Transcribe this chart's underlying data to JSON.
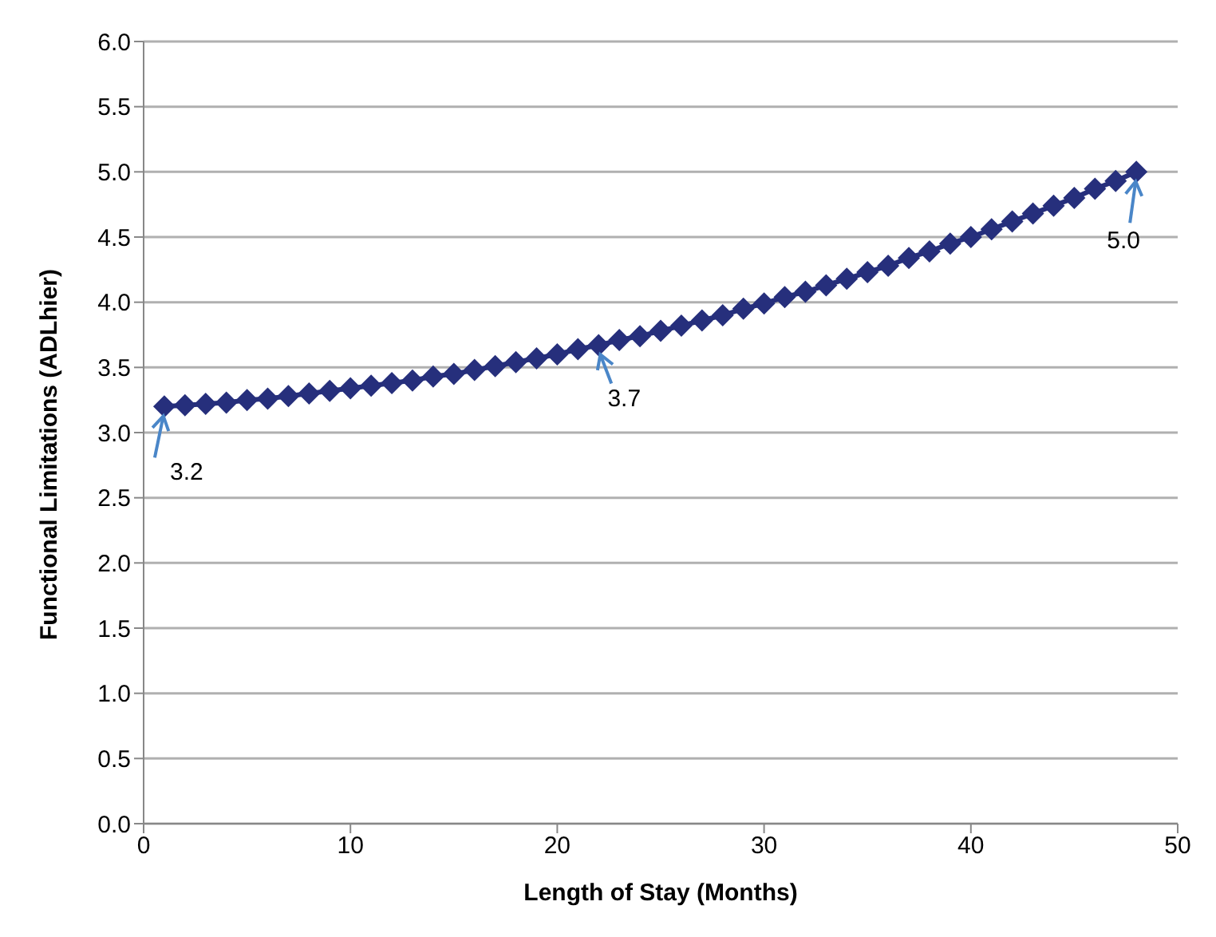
{
  "chart_data": {
    "type": "line",
    "xlabel": "Length of Stay (Months)",
    "ylabel": "Functional Limitations (ADLhier)",
    "x": [
      1,
      2,
      3,
      4,
      5,
      6,
      7,
      8,
      9,
      10,
      11,
      12,
      13,
      14,
      15,
      16,
      17,
      18,
      19,
      20,
      21,
      22,
      23,
      24,
      25,
      26,
      27,
      28,
      29,
      30,
      31,
      32,
      33,
      34,
      35,
      36,
      37,
      38,
      39,
      40,
      41,
      42,
      43,
      44,
      45,
      46,
      47,
      48
    ],
    "series": [
      {
        "color": "#262f7c",
        "values": [
          3.2,
          3.21,
          3.22,
          3.23,
          3.25,
          3.26,
          3.28,
          3.3,
          3.32,
          3.34,
          3.36,
          3.38,
          3.4,
          3.43,
          3.45,
          3.48,
          3.51,
          3.54,
          3.57,
          3.6,
          3.64,
          3.67,
          3.71,
          3.74,
          3.78,
          3.82,
          3.86,
          3.9,
          3.95,
          3.99,
          4.04,
          4.08,
          4.13,
          4.18,
          4.23,
          4.28,
          4.34,
          4.39,
          4.45,
          4.5,
          4.56,
          4.62,
          4.68,
          4.74,
          4.8,
          4.87,
          4.93,
          5.0
        ]
      }
    ],
    "xlim": [
      0,
      50
    ],
    "xticks": [
      0,
      10,
      20,
      30,
      40,
      50
    ],
    "ylim": [
      0,
      6
    ],
    "yticks": [
      {
        "value": 0,
        "label": "0.0"
      },
      {
        "value": 0.5,
        "label": "0.5"
      },
      {
        "value": 1,
        "label": "1.0"
      },
      {
        "value": 1.5,
        "label": "1.5"
      },
      {
        "value": 2,
        "label": "2.0"
      },
      {
        "value": 2.5,
        "label": "2.5"
      },
      {
        "value": 3,
        "label": "3.0"
      },
      {
        "value": 3.5,
        "label": "3.5"
      },
      {
        "value": 4,
        "label": "4.0"
      },
      {
        "value": 4.5,
        "label": "4.5"
      },
      {
        "value": 5,
        "label": "5.0"
      },
      {
        "value": 5.5,
        "label": "5.5"
      },
      {
        "value": 6,
        "label": "6.0"
      }
    ],
    "grid": "y",
    "legend": false,
    "marker": "diamond",
    "line_style": "solid",
    "annotations": [
      {
        "text": "3.2",
        "x": 1,
        "y": 3.2
      },
      {
        "text": "3.7",
        "x": 22,
        "y": 3.67
      },
      {
        "text": "5.0",
        "x": 48,
        "y": 5.0
      }
    ]
  }
}
